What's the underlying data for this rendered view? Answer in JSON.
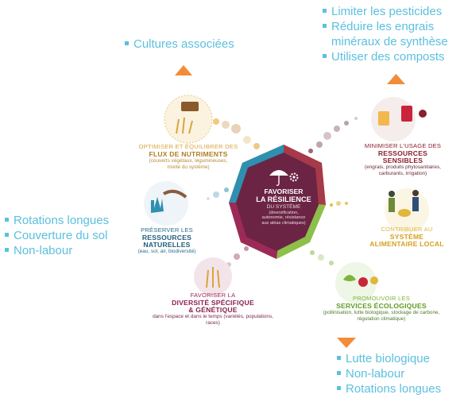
{
  "bullets": {
    "top_left": {
      "items": [
        "Cultures associées"
      ]
    },
    "top_right": {
      "items": [
        "Limiter les pesticides",
        "Réduire les engrais",
        "minéraux de synthèse",
        "Utiliser des composts"
      ]
    },
    "left": {
      "items": [
        "Rotations longues",
        "Couverture du sol",
        "Non-labour"
      ]
    },
    "bottom_right": {
      "items": [
        "Lutte biologique",
        "Non-labour",
        "Rotations longues"
      ]
    }
  },
  "center": {
    "line1": "FAVORISER",
    "line2": "LA RÉSILIENCE",
    "line3": "DU SYSTÈME",
    "sub1": "(diversification,",
    "sub2": "autonomie, résistance",
    "sub3": "aux aléas climatiques)"
  },
  "nodes": {
    "flux": {
      "t1": "OPTIMISER ET ÉQUILIBRER DES",
      "t2": "FLUX DE NUTRIMENTS",
      "s1": "(couverts végétaux, légumineuses,",
      "s2": "mixité du système)"
    },
    "ressources_sensibles": {
      "t1": "MINIMISER L'USAGE DES",
      "t2a": "RESSOURCES",
      "t2b": "SENSIBLES",
      "s1": "(engrais, produits phytosanitaires,",
      "s2": "carburants, irrigation)"
    },
    "naturelles": {
      "t1": "PRÉSERVER LES",
      "t2a": "RESSOURCES",
      "t2b": "NATURELLES",
      "s1": "(eau, sol, air, biodiversité)"
    },
    "alimentaire": {
      "t1": "CONTRIBUER AU",
      "t2a": "SYSTÈME",
      "t2b": "ALIMENTAIRE LOCAL"
    },
    "diversite": {
      "t1": "FAVORISER LA",
      "t2a": "DIVERSITÉ SPÉCIFIQUE",
      "t2b": "& GÉNÉTIQUE",
      "s1": "dans l'espace et dans le temps (variétés, populations,",
      "s2": "races)"
    },
    "services": {
      "t1": "PROMOUVOIR LES",
      "t2": "SERVICES ÉCOLOGIQUES",
      "s1": "(pollinisation, lutte biologique, stockage de carbone,",
      "s2": "régulation climatique)"
    }
  },
  "colors": {
    "bullet": "#5bc0de",
    "arrow": "#f28c38",
    "hex_fill": "#6b2443",
    "flux": "#d9a441",
    "sensibles": "#8a1f2d",
    "naturelles": "#2a6d8f",
    "alimentaire": "#e0b63b",
    "diversite": "#9c2a59",
    "services": "#7db53a"
  }
}
